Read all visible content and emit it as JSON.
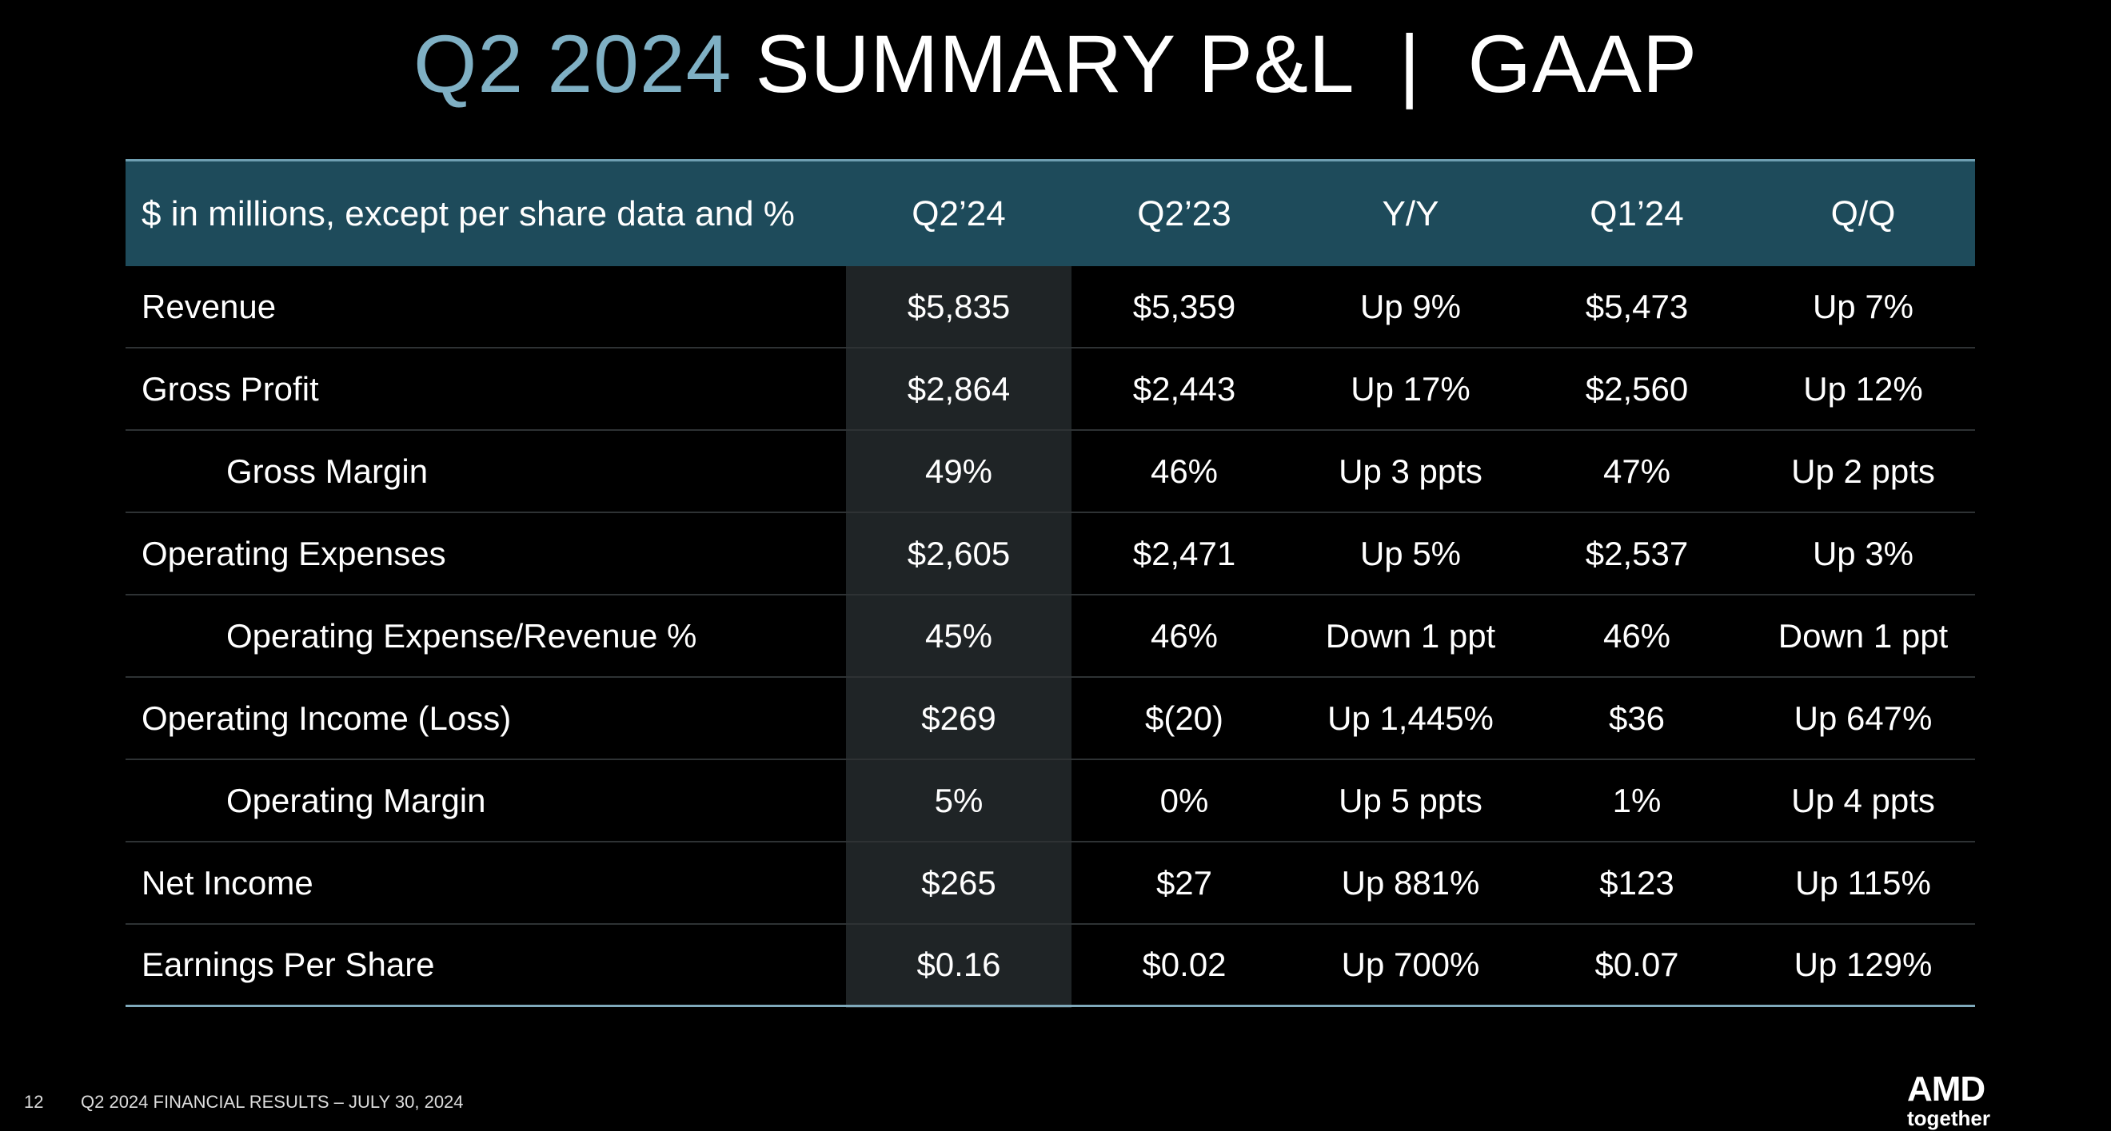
{
  "title": {
    "lead": "Q2 2024",
    "main": "SUMMARY P&L  |  GAAP"
  },
  "table": {
    "header": [
      "$ in millions, except per share data and %",
      "Q2’24",
      "Q2’23",
      "Y/Y",
      "Q1’24",
      "Q/Q"
    ],
    "rows": [
      {
        "label": "Revenue",
        "cells": [
          "$5,835",
          "$5,359",
          "Up 9%",
          "$5,473",
          "Up 7%"
        ]
      },
      {
        "label": "Gross Profit",
        "cells": [
          "$2,864",
          "$2,443",
          "Up 17%",
          "$2,560",
          "Up 12%"
        ]
      },
      {
        "label": "Gross Margin",
        "indent": true,
        "cells": [
          "49%",
          "46%",
          "Up 3 ppts",
          "47%",
          "Up 2 ppts"
        ]
      },
      {
        "label": "Operating Expenses",
        "cells": [
          "$2,605",
          "$2,471",
          "Up 5%",
          "$2,537",
          "Up 3%"
        ]
      },
      {
        "label": "Operating Expense/Revenue %",
        "indent": true,
        "cells": [
          "45%",
          "46%",
          "Down 1 ppt",
          "46%",
          "Down 1 ppt"
        ]
      },
      {
        "label": "Operating Income (Loss)",
        "cells": [
          "$269",
          "$(20)",
          "Up 1,445%",
          "$36",
          "Up 647%"
        ]
      },
      {
        "label": "Operating Margin",
        "indent": true,
        "cells": [
          "5%",
          "0%",
          "Up 5 ppts",
          "1%",
          "Up 4 ppts"
        ]
      },
      {
        "label": "Net Income",
        "cells": [
          "$265",
          "$27",
          "Up 881%",
          "$123",
          "Up 115%"
        ]
      },
      {
        "label": "Earnings Per Share",
        "cells": [
          "$0.16",
          "$0.02",
          "Up 700%",
          "$0.07",
          "Up 129%"
        ]
      }
    ]
  },
  "footer": {
    "page": "12",
    "text": "Q2 2024 FINANCIAL RESULTS – JULY 30, 2024",
    "logo": "AMD",
    "tagline": "together"
  }
}
